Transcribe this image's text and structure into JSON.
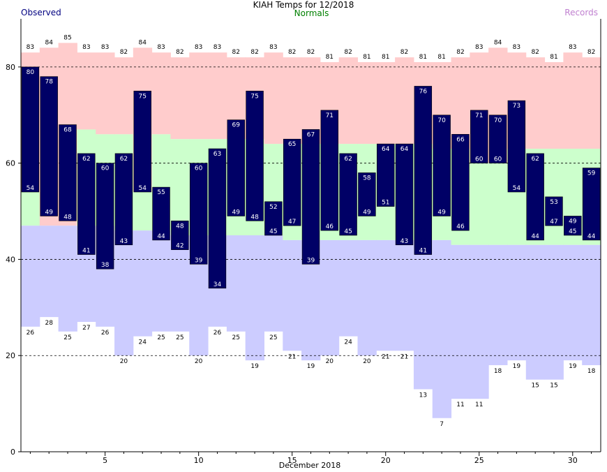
{
  "chart_data": {
    "type": "bar",
    "title": "KIAH Temps for 12/2018",
    "xlabel": "December 2018",
    "ylabel": "",
    "legend": {
      "observed": "Observed",
      "normals": "Normals",
      "records": "Records"
    },
    "colors": {
      "observed": "#000066",
      "normal_band": "#ccffcc",
      "record_high_band": "#ffcccc",
      "record_low_band": "#ccccff",
      "legend_observed": "#000080",
      "legend_normals": "#008000",
      "legend_records": "#c080d0"
    },
    "x_range": [
      1,
      31
    ],
    "x_ticks": [
      5,
      10,
      15,
      20,
      25,
      30
    ],
    "ylim": [
      0,
      90
    ],
    "y_ticks": [
      0,
      20,
      40,
      60,
      80
    ],
    "gridlines_at": [
      20,
      40,
      60,
      80
    ],
    "days": [
      1,
      2,
      3,
      4,
      5,
      6,
      7,
      8,
      9,
      10,
      11,
      12,
      13,
      14,
      15,
      16,
      17,
      18,
      19,
      20,
      21,
      22,
      23,
      24,
      25,
      26,
      27,
      28,
      29,
      30,
      31
    ],
    "record_high": [
      83,
      84,
      85,
      83,
      83,
      82,
      84,
      83,
      82,
      83,
      83,
      82,
      82,
      83,
      82,
      82,
      81,
      82,
      81,
      81,
      82,
      81,
      81,
      82,
      83,
      84,
      83,
      82,
      81,
      83,
      82
    ],
    "record_low": [
      26,
      28,
      25,
      27,
      26,
      20,
      24,
      25,
      25,
      20,
      26,
      25,
      19,
      25,
      21,
      19,
      20,
      24,
      20,
      21,
      21,
      13,
      7,
      11,
      11,
      18,
      19,
      15,
      15,
      19,
      18
    ],
    "normal_high": [
      54,
      47,
      47,
      67,
      66,
      66,
      54,
      66,
      65,
      65,
      65,
      65,
      65,
      64,
      64,
      64,
      64,
      64,
      64,
      64,
      64,
      64,
      63,
      63,
      60,
      60,
      63,
      63,
      63,
      63,
      63
    ],
    "normal_low": [
      47,
      47,
      47,
      47,
      47,
      46,
      46,
      46,
      45,
      45,
      45,
      45,
      45,
      45,
      44,
      44,
      44,
      44,
      44,
      44,
      44,
      44,
      44,
      43,
      43,
      43,
      43,
      43,
      43,
      43,
      43
    ],
    "observed_high": [
      80,
      78,
      68,
      62,
      60,
      62,
      75,
      55,
      48,
      60,
      63,
      69,
      75,
      52,
      65,
      67,
      71,
      62,
      58,
      64,
      64,
      76,
      70,
      66,
      71,
      70,
      73,
      62,
      53,
      49,
      59
    ],
    "observed_low": [
      54,
      49,
      48,
      41,
      38,
      43,
      54,
      44,
      42,
      39,
      34,
      49,
      48,
      45,
      47,
      39,
      46,
      45,
      49,
      51,
      43,
      41,
      49,
      46,
      60,
      60,
      54,
      44,
      47,
      45,
      44
    ]
  }
}
